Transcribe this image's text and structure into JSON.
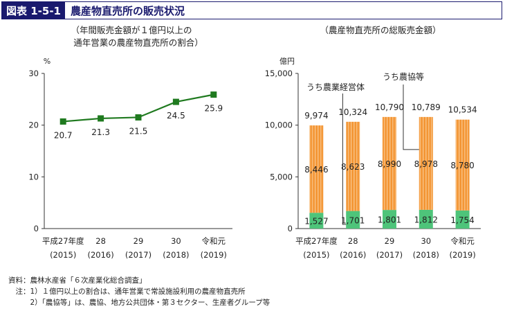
{
  "header": {
    "figure_label": "図表 1-5-1",
    "title": "農産物直売所の販売状況"
  },
  "chart_data": [
    {
      "type": "line",
      "title_lines": [
        "（年間販売金額が１億円以上の",
        "通年営業の農産物直売所の割合）"
      ],
      "ylabel": "%",
      "ylim": [
        0,
        30
      ],
      "yticks": [
        "0",
        "10",
        "20",
        "30"
      ],
      "categories": [
        {
          "line1": "平成27年度",
          "line2": "(2015)"
        },
        {
          "line1": "28",
          "line2": "(2016)"
        },
        {
          "line1": "29",
          "line2": "(2017)"
        },
        {
          "line1": "30",
          "line2": "(2018)"
        },
        {
          "line1": "令和元",
          "line2": "(2019)"
        }
      ],
      "series": [
        {
          "values": [
            20.7,
            21.3,
            21.5,
            24.5,
            25.9
          ]
        }
      ],
      "labels": [
        "20.7",
        "21.3",
        "21.5",
        "24.5",
        "25.9"
      ],
      "color": "#1f7a1f"
    },
    {
      "type": "bar",
      "stacked": true,
      "title": "（農産物直売所の総販売金額）",
      "ylabel": "億円",
      "ylim": [
        0,
        15000
      ],
      "yticks": [
        "0",
        "5,000",
        "10,000",
        "15,000"
      ],
      "categories": [
        {
          "line1": "平成27年度",
          "line2": "(2015)"
        },
        {
          "line1": "28",
          "line2": "(2016)"
        },
        {
          "line1": "29",
          "line2": "(2017)"
        },
        {
          "line1": "30",
          "line2": "(2018)"
        },
        {
          "line1": "令和元",
          "line2": "(2019)"
        }
      ],
      "series": [
        {
          "name": "うち農業経営体",
          "values": [
            1527,
            1701,
            1801,
            1812,
            1754
          ],
          "labels": [
            "1,527",
            "1,701",
            "1,801",
            "1,812",
            "1,754"
          ],
          "color": "#4ec47a"
        },
        {
          "name": "うち農協等",
          "values": [
            8446,
            8623,
            8990,
            8978,
            8780
          ],
          "labels": [
            "8,446",
            "8,623",
            "8,990",
            "8,978",
            "8,780"
          ],
          "color": "#f5a04a"
        }
      ],
      "totals": [
        "9,974",
        "10,324",
        "10,790",
        "10,789",
        "10,534"
      ]
    }
  ],
  "notes": [
    "資料：農林水産省「６次産業化総合調査」",
    "　注：1）１億円以上の割合は、通年営業で常設施設利用の農産物直売所",
    "　　　2）「農協等」は、農協、地方公共団体・第３セクター、生産者グループ等"
  ]
}
